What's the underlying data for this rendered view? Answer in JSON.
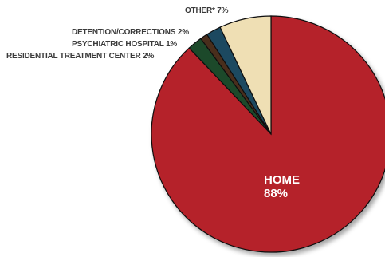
{
  "chart_data": {
    "type": "pie",
    "title": "",
    "slices": [
      {
        "label": "HOME",
        "value": 88,
        "display": "88%",
        "color": "#b5202a",
        "label_position": "inside"
      },
      {
        "label": "RESIDENTIAL TREATMENT CENTER",
        "value": 2,
        "display": "2%",
        "color": "#1f4a2c",
        "label_position": "outside"
      },
      {
        "label": "PSYCHIATRIC HOSPITAL",
        "value": 1,
        "display": "1%",
        "color": "#4a2e1c",
        "label_position": "outside"
      },
      {
        "label": "DETENTION/CORRECTIONS",
        "value": 2,
        "display": "2%",
        "color": "#1f4a60",
        "label_position": "outside"
      },
      {
        "label": "OTHER*",
        "value": 7,
        "display": "7%",
        "color": "#efdfb4",
        "label_position": "outside"
      }
    ]
  }
}
